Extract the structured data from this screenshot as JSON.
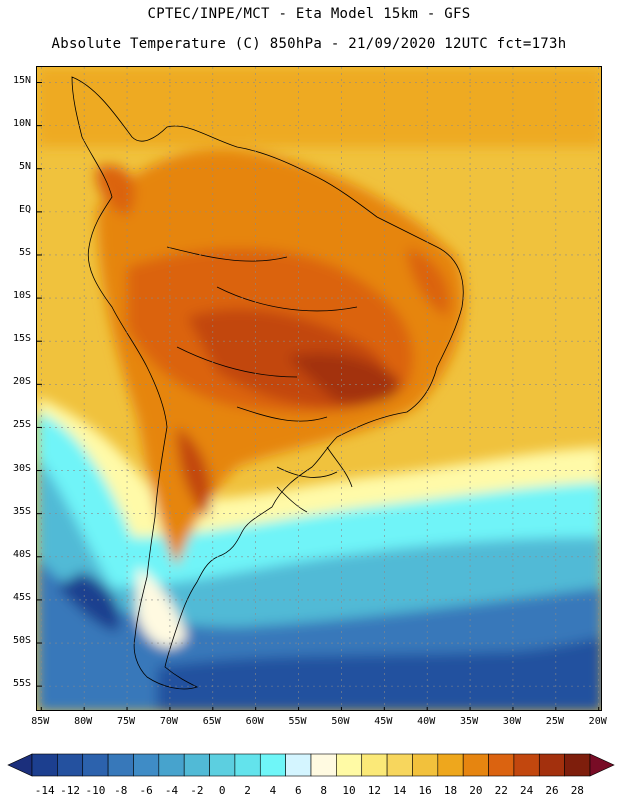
{
  "header": {
    "line1": "CPTEC/INPE/MCT -  Eta Model 15km - GFS",
    "line2": "Absolute Temperature (C) 850hPa - 21/09/2020 12UTC fct=173h"
  },
  "map": {
    "lat_labels": [
      "15N",
      "10N",
      "5N",
      "EQ",
      "5S",
      "10S",
      "15S",
      "20S",
      "25S",
      "30S",
      "35S",
      "40S",
      "45S",
      "50S",
      "55S"
    ],
    "lat_values": [
      15,
      10,
      5,
      0,
      -5,
      -10,
      -15,
      -20,
      -25,
      -30,
      -35,
      -40,
      -45,
      -50,
      -55
    ],
    "lon_labels": [
      "85W",
      "80W",
      "75W",
      "70W",
      "65W",
      "60W",
      "55W",
      "50W",
      "45W",
      "40W",
      "35W",
      "30W",
      "25W",
      "20W"
    ],
    "lon_values": [
      -85,
      -80,
      -75,
      -70,
      -65,
      -60,
      -55,
      -50,
      -45,
      -40,
      -35,
      -30,
      -25,
      -20
    ],
    "lon_range": [
      -85.5,
      -19.5
    ],
    "lat_range": [
      -58,
      16.8
    ]
  },
  "colorbar": {
    "labels": [
      "-14",
      "-12",
      "-10",
      "-8",
      "-6",
      "-4",
      "-2",
      "0",
      "2",
      "4",
      "6",
      "8",
      "10",
      "12",
      "14",
      "16",
      "18",
      "20",
      "22",
      "24",
      "26",
      "28"
    ],
    "colors": [
      "#1c3f8f",
      "#24519f",
      "#2c62ad",
      "#3778ba",
      "#3f8cc6",
      "#47a3cd",
      "#51bad6",
      "#5ccfe0",
      "#63e3ec",
      "#6ff6f8",
      "#d4f5ff",
      "#fffae1",
      "#fffaa5",
      "#fbe978",
      "#f7d65d",
      "#f2c13c",
      "#eea71d",
      "#e68510",
      "#db6310",
      "#c2470e",
      "#a3300d",
      "#7e1e0c"
    ],
    "under_color": "#1b2f7c",
    "over_color": "#780c26"
  }
}
